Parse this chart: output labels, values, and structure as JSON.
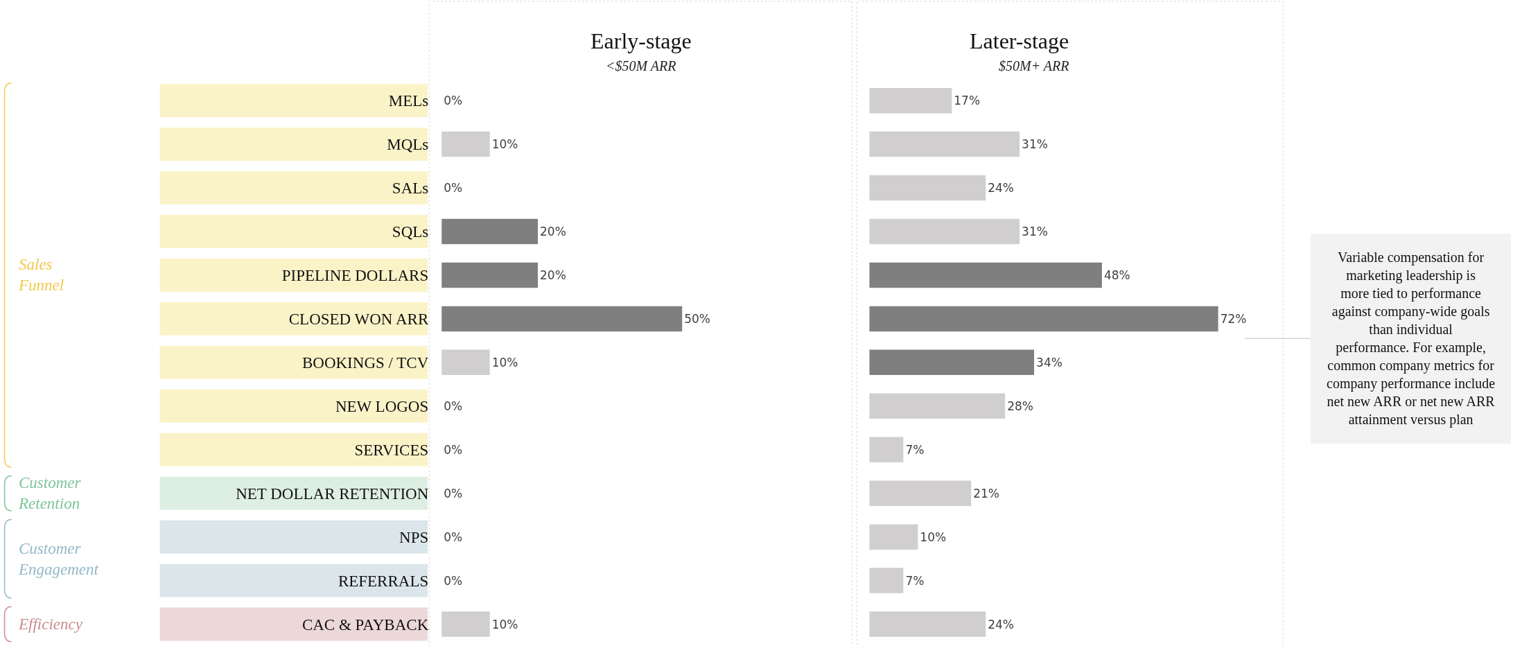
{
  "chart_data": [
    {
      "type": "bar",
      "orientation": "horizontal",
      "title": "Early-stage",
      "subtitle": "<$50M ARR",
      "tick_labels": "y",
      "categories": [
        "MELs",
        "MQLs",
        "SALs",
        "SQLs",
        "PIPELINE DOLLARS",
        "CLOSED WON ARR",
        "BOOKINGS / TCV",
        "NEW LOGOS",
        "SERVICES",
        "NET DOLLAR RETENTION",
        "NPS",
        "REFERRALS",
        "CAC & PAYBACK"
      ],
      "values": [
        0,
        10,
        0,
        20,
        20,
        50,
        10,
        0,
        0,
        0,
        0,
        0,
        10
      ],
      "value_labels": [
        "0%",
        "10%",
        "0%",
        "20%",
        "20%",
        "50%",
        "10%",
        "0%",
        "0%",
        "0%",
        "0%",
        "0%",
        "10%"
      ],
      "colors": [
        "#d0cece",
        "#d0cece",
        "#d0cece",
        "#7f7f7f",
        "#7f7f7f",
        "#7f7f7f",
        "#d0cece",
        "#d0cece",
        "#d0cece",
        "#d0cece",
        "#d0cece",
        "#d0cece",
        "#d0cece"
      ],
      "annotations": [
        "Sales Funnel",
        "Customer Retention",
        "Customer Engagement",
        "Efficiency"
      ]
    },
    {
      "type": "bar",
      "orientation": "horizontal",
      "title": "Later-stage",
      "subtitle": "$50M+ ARR",
      "tick_labels": false,
      "categories": [
        "MELs",
        "MQLs",
        "SALs",
        "SQLs",
        "PIPELINE DOLLARS",
        "CLOSED WON ARR",
        "BOOKINGS / TCV",
        "NEW LOGOS",
        "SERVICES",
        "NET DOLLAR RETENTION",
        "NPS",
        "REFERRALS",
        "CAC & PAYBACK"
      ],
      "values": [
        17,
        31,
        24,
        31,
        48,
        72,
        34,
        28,
        7,
        21,
        10,
        7,
        24
      ],
      "value_labels": [
        "17%",
        "31%",
        "24%",
        "31%",
        "48%",
        "72%",
        "34%",
        "28%",
        "7%",
        "21%",
        "10%",
        "7%",
        "24%"
      ],
      "colors": [
        "#d0cece",
        "#d0cece",
        "#d0cece",
        "#d0cece",
        "#7f7f7f",
        "#7f7f7f",
        "#7f7f7f",
        "#d0cece",
        "#d0cece",
        "#d0cece",
        "#d0cece",
        "#d0cece",
        "#d0cece"
      ],
      "annotations": [
        "Variable compensation for marketing leadership is more tied to performance against company-wide goals than individual performance. For example, common company metrics for company performance include net new ARR or net new ARR attainment versus plan"
      ]
    }
  ]
}
